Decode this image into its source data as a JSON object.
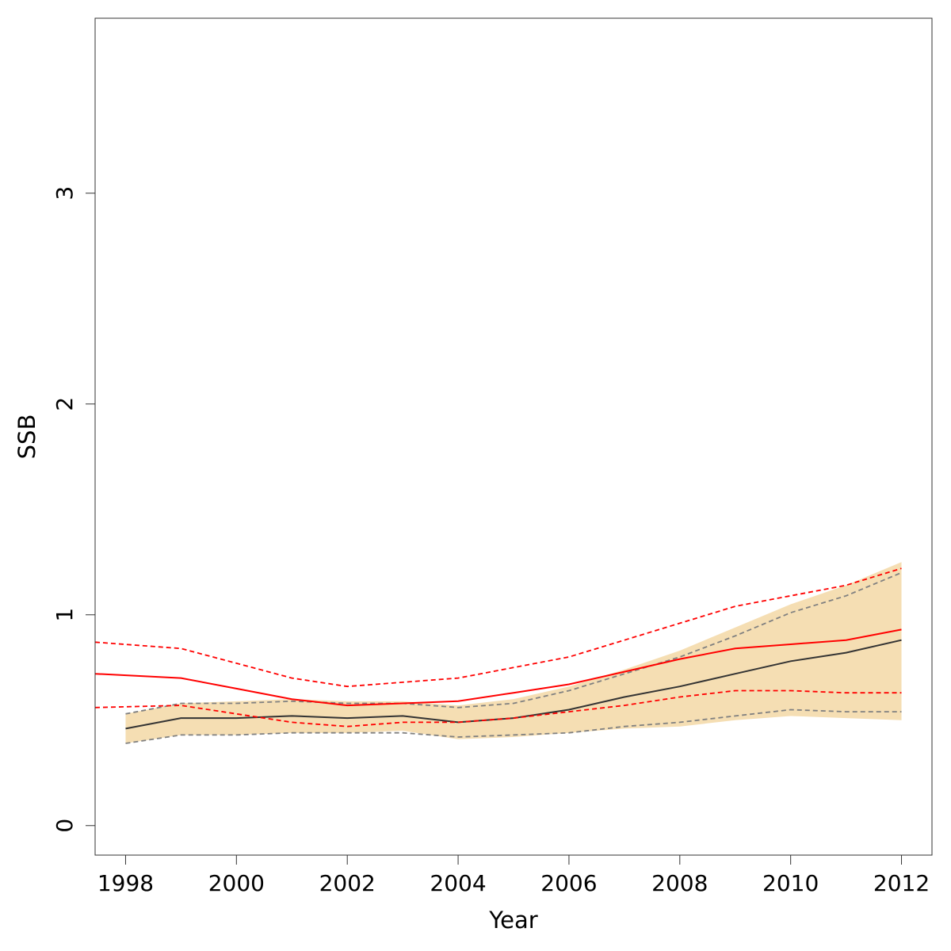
{
  "chart_data": {
    "type": "line",
    "title": "",
    "xlabel": "Year",
    "ylabel": "SSB",
    "xlim": [
      1997.45,
      2012.55
    ],
    "ylim": [
      -0.14,
      3.83
    ],
    "x_ticks": [
      1998,
      2000,
      2002,
      2004,
      2006,
      2008,
      2010,
      2012
    ],
    "x_tick_labels": [
      "1998",
      "2000",
      "2002",
      "2004",
      "2006",
      "2008",
      "2010",
      "2012"
    ],
    "y_ticks": [
      0,
      1,
      2,
      3
    ],
    "y_tick_labels": [
      "0",
      "1",
      "2",
      "3"
    ],
    "grid": false,
    "colors": {
      "band": "#F5DEB3",
      "estimate": "#000000",
      "estimate_ci": "#808080",
      "comparison": "#FF0000"
    },
    "band": {
      "x": [
        1998,
        1999,
        2000,
        2001,
        2002,
        2003,
        2004,
        2005,
        2006,
        2007,
        2008,
        2009,
        2010,
        2011,
        2012
      ],
      "lower": [
        0.39,
        0.43,
        0.43,
        0.44,
        0.44,
        0.45,
        0.41,
        0.42,
        0.44,
        0.46,
        0.47,
        0.5,
        0.52,
        0.51,
        0.5
      ],
      "upper": [
        0.53,
        0.58,
        0.59,
        0.6,
        0.59,
        0.59,
        0.57,
        0.6,
        0.66,
        0.74,
        0.83,
        0.94,
        1.05,
        1.14,
        1.25
      ]
    },
    "series": [
      {
        "style": "solid",
        "color": "#333333",
        "x": [
          1998,
          1999,
          2000,
          2001,
          2002,
          2003,
          2004,
          2005,
          2006,
          2007,
          2008,
          2009,
          2010,
          2011,
          2012
        ],
        "values": [
          0.46,
          0.51,
          0.51,
          0.52,
          0.51,
          0.52,
          0.49,
          0.51,
          0.55,
          0.61,
          0.66,
          0.72,
          0.78,
          0.82,
          0.88
        ]
      },
      {
        "style": "dashed",
        "color": "#808080",
        "x": [
          1998,
          1999,
          2000,
          2001,
          2002,
          2003,
          2004,
          2005,
          2006,
          2007,
          2008,
          2009,
          2010,
          2011,
          2012
        ],
        "values": [
          0.39,
          0.43,
          0.43,
          0.44,
          0.44,
          0.44,
          0.42,
          0.43,
          0.44,
          0.47,
          0.49,
          0.52,
          0.55,
          0.54,
          0.54
        ]
      },
      {
        "style": "dashed",
        "color": "#808080",
        "x": [
          1998,
          1999,
          2000,
          2001,
          2002,
          2003,
          2004,
          2005,
          2006,
          2007,
          2008,
          2009,
          2010,
          2011,
          2012
        ],
        "values": [
          0.53,
          0.58,
          0.58,
          0.59,
          0.58,
          0.58,
          0.56,
          0.58,
          0.64,
          0.72,
          0.8,
          0.9,
          1.01,
          1.09,
          1.2
        ]
      },
      {
        "style": "solid",
        "color": "#FF0000",
        "x": [
          1997.45,
          1999,
          2000,
          2001,
          2002,
          2003,
          2004,
          2005,
          2006,
          2007,
          2008,
          2009,
          2010,
          2011,
          2012
        ],
        "values": [
          0.72,
          0.7,
          0.65,
          0.6,
          0.57,
          0.58,
          0.59,
          0.63,
          0.67,
          0.73,
          0.79,
          0.84,
          0.86,
          0.88,
          0.93
        ]
      },
      {
        "style": "dashed",
        "color": "#FF0000",
        "x": [
          1997.45,
          1999,
          2000,
          2001,
          2002,
          2003,
          2004,
          2005,
          2006,
          2007,
          2008,
          2009,
          2010,
          2011,
          2012
        ],
        "values": [
          0.87,
          0.84,
          0.77,
          0.7,
          0.66,
          0.68,
          0.7,
          0.75,
          0.8,
          0.88,
          0.96,
          1.04,
          1.09,
          1.14,
          1.22
        ]
      },
      {
        "style": "dashed",
        "color": "#FF0000",
        "x": [
          1997.45,
          1999,
          2000,
          2001,
          2002,
          2003,
          2004,
          2005,
          2006,
          2007,
          2008,
          2009,
          2010,
          2011,
          2012
        ],
        "values": [
          0.56,
          0.57,
          0.53,
          0.49,
          0.47,
          0.49,
          0.49,
          0.51,
          0.54,
          0.57,
          0.61,
          0.64,
          0.64,
          0.63,
          0.63
        ]
      }
    ]
  }
}
